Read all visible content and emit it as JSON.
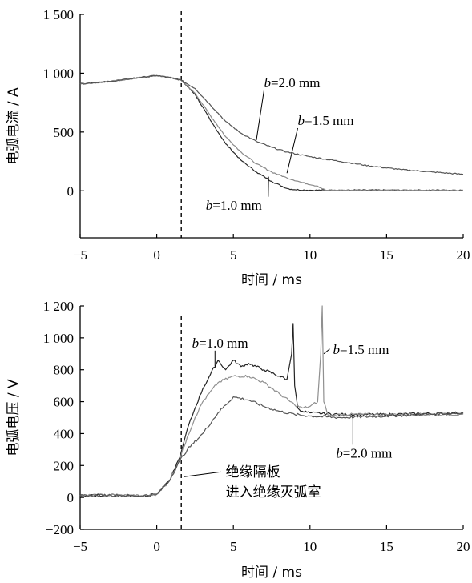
{
  "chart_data": [
    {
      "type": "line",
      "xlabel": "时间 / ms",
      "ylabel": "电弧电流 / A",
      "xlim": [
        -5,
        20
      ],
      "ylim": [
        -400,
        1500
      ],
      "xticks": [
        "−5",
        "0",
        "5",
        "10",
        "15",
        "20"
      ],
      "yticks": [
        "0",
        "500",
        "1 000",
        "1 500"
      ],
      "marker_x": 1.6,
      "series": [
        {
          "name": "b=1.0 mm",
          "x": [
            -5,
            -3,
            -1,
            0,
            1,
            1.6,
            2.5,
            3.5,
            4.5,
            5.5,
            6.5,
            7.5,
            8.5,
            9,
            10,
            12,
            15,
            20
          ],
          "y": [
            910,
            930,
            965,
            980,
            960,
            940,
            820,
            600,
            400,
            260,
            160,
            80,
            20,
            10,
            5,
            5,
            5,
            5
          ],
          "color": "#2a2a2a"
        },
        {
          "name": "b=1.5 mm",
          "x": [
            -5,
            -3,
            -1,
            0,
            1,
            1.6,
            2.5,
            3.5,
            4.5,
            5.5,
            6.5,
            7.5,
            8.5,
            9.5,
            10.5,
            11,
            12,
            15,
            20
          ],
          "y": [
            910,
            930,
            965,
            980,
            960,
            940,
            830,
            640,
            460,
            330,
            230,
            160,
            110,
            70,
            40,
            5,
            5,
            5,
            5
          ],
          "color": "#8a8a8a"
        },
        {
          "name": "b=2.0 mm",
          "x": [
            -5,
            -3,
            -1,
            0,
            1,
            1.6,
            2.5,
            3.5,
            4.5,
            5.5,
            6.5,
            7.5,
            8.5,
            10,
            12,
            14,
            16,
            18,
            20
          ],
          "y": [
            910,
            930,
            965,
            980,
            960,
            940,
            870,
            730,
            590,
            490,
            420,
            370,
            330,
            290,
            250,
            210,
            180,
            160,
            140
          ],
          "color": "#555555"
        }
      ],
      "annotations": [
        {
          "text": "b=2.0 mm",
          "x": 7.0,
          "y": 880,
          "arrow_to": [
            6.5,
            430
          ]
        },
        {
          "text": "b=1.5 mm",
          "x": 9.2,
          "y": 560,
          "arrow_to": [
            8.5,
            150
          ]
        },
        {
          "text": "b=1.0 mm",
          "x": 3.2,
          "y": -160,
          "arrow_to": [
            7.3,
            120
          ]
        }
      ]
    },
    {
      "type": "line",
      "xlabel": "时间 / ms",
      "ylabel": "电弧电压 / V",
      "xlim": [
        -5,
        20
      ],
      "ylim": [
        -200,
        1200
      ],
      "xticks": [
        "−5",
        "0",
        "5",
        "10",
        "15",
        "20"
      ],
      "yticks": [
        "−200",
        "0",
        "200",
        "400",
        "600",
        "800",
        "1 000",
        "1 200"
      ],
      "marker_x": 1.6,
      "series": [
        {
          "name": "b=1.0 mm",
          "x": [
            -5,
            -3,
            -1,
            0,
            0.8,
            1.5,
            2,
            2.5,
            3,
            3.5,
            4,
            4.5,
            5,
            5.5,
            6,
            7,
            8,
            8.5,
            8.8,
            8.9,
            9.0,
            9.2,
            9.5,
            10,
            12,
            15,
            20
          ],
          "y": [
            10,
            15,
            10,
            20,
            100,
            250,
            430,
            560,
            680,
            770,
            860,
            800,
            860,
            820,
            840,
            800,
            760,
            740,
            900,
            1090,
            700,
            560,
            540,
            530,
            520,
            520,
            530
          ],
          "color": "#222222"
        },
        {
          "name": "b=1.5 mm",
          "x": [
            -5,
            -3,
            -1,
            0,
            0.8,
            1.5,
            2,
            2.5,
            3,
            4,
            5,
            6,
            7,
            8,
            9,
            9.5,
            10,
            10.5,
            10.7,
            10.8,
            10.9,
            11.2,
            12,
            15,
            20
          ],
          "y": [
            10,
            15,
            10,
            20,
            100,
            240,
            380,
            500,
            600,
            720,
            760,
            760,
            720,
            650,
            580,
            560,
            570,
            600,
            900,
            1200,
            600,
            510,
            520,
            520,
            520
          ],
          "color": "#909090"
        },
        {
          "name": "b=2.0 mm",
          "x": [
            -5,
            -3,
            -1,
            0,
            0.8,
            1.5,
            2,
            3,
            4,
            5,
            6,
            7,
            8,
            9,
            10,
            12,
            15,
            20
          ],
          "y": [
            10,
            15,
            10,
            20,
            100,
            230,
            300,
            400,
            530,
            630,
            610,
            570,
            540,
            520,
            510,
            500,
            510,
            530
          ],
          "color": "#555555"
        }
      ],
      "annotations": [
        {
          "text": "b=1.0 mm",
          "x": 2.3,
          "y": 940,
          "arrow_to": [
            3.8,
            820
          ]
        },
        {
          "text": "b=1.5 mm",
          "x": 11.5,
          "y": 900,
          "arrow_to": [
            10.9,
            900
          ]
        },
        {
          "text": "b=2.0 mm",
          "x": 11.7,
          "y": 250,
          "arrow_to": [
            12.8,
            520
          ]
        },
        {
          "text": "绝缘隔板",
          "x": 4.5,
          "y": 130,
          "arrow_to": [
            1.8,
            130
          ]
        },
        {
          "text": "进入绝缘灭弧室",
          "x": 4.5,
          "y": 5
        }
      ]
    }
  ]
}
